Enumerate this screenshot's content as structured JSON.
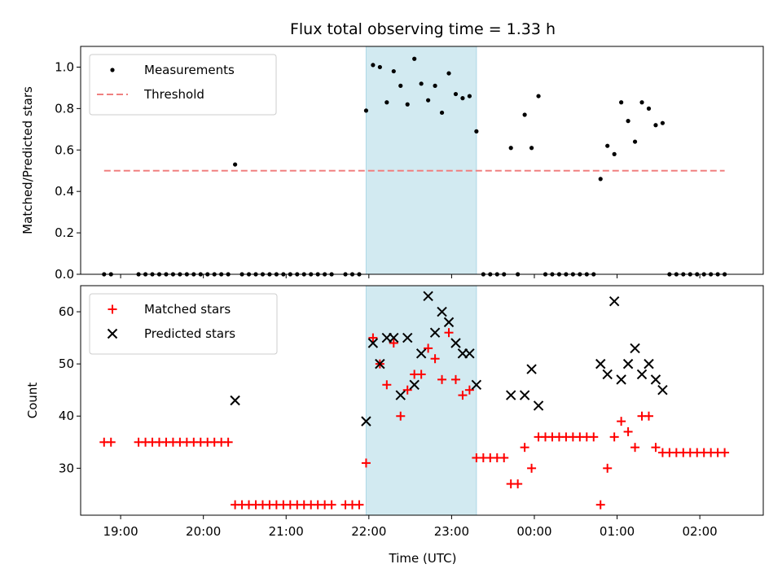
{
  "title": "Flux total observing time = 1.33 h",
  "xlabel": "Time (UTC)",
  "colors": {
    "measurement": "#000000",
    "threshold": "#f08080",
    "matched": "#ff0000",
    "predicted": "#000000",
    "highlight": "#add8e6"
  },
  "chart_data": [
    {
      "type": "scatter",
      "ylabel": "Matched/Predicted stars",
      "ylim": [
        0,
        1.1
      ],
      "yticks": [
        "0.0",
        "0.2",
        "0.4",
        "0.6",
        "0.8",
        "1.0"
      ],
      "xticks": [
        "19:00",
        "20:00",
        "21:00",
        "22:00",
        "23:00",
        "00:00",
        "01:00",
        "02:00"
      ],
      "xlim": [
        "18:31",
        "02:46"
      ],
      "legend_position": "upper left",
      "highlight_span": [
        "21:58",
        "23:18"
      ],
      "threshold": {
        "name": "Threshold",
        "value": 0.5,
        "x": [
          "18:48",
          "02:18"
        ]
      },
      "series": [
        {
          "name": "Measurements",
          "points": [
            [
              "18:48",
              0
            ],
            [
              "18:53",
              0
            ],
            [
              "19:13",
              0
            ],
            [
              "19:18",
              0
            ],
            [
              "19:23",
              0
            ],
            [
              "19:28",
              0
            ],
            [
              "19:33",
              0
            ],
            [
              "19:38",
              0
            ],
            [
              "19:43",
              0
            ],
            [
              "19:48",
              0
            ],
            [
              "19:53",
              0
            ],
            [
              "19:58",
              0
            ],
            [
              "20:03",
              0
            ],
            [
              "20:08",
              0
            ],
            [
              "20:13",
              0
            ],
            [
              "20:18",
              0
            ],
            [
              "20:23",
              0.53
            ],
            [
              "20:28",
              0
            ],
            [
              "20:33",
              0
            ],
            [
              "20:38",
              0
            ],
            [
              "20:43",
              0
            ],
            [
              "20:48",
              0
            ],
            [
              "20:53",
              0
            ],
            [
              "20:58",
              0
            ],
            [
              "21:03",
              0
            ],
            [
              "21:08",
              0
            ],
            [
              "21:13",
              0
            ],
            [
              "21:18",
              0
            ],
            [
              "21:23",
              0
            ],
            [
              "21:28",
              0
            ],
            [
              "21:33",
              0
            ],
            [
              "21:43",
              0
            ],
            [
              "21:48",
              0
            ],
            [
              "21:53",
              0
            ],
            [
              "21:58",
              0.79
            ],
            [
              "22:03",
              1.01
            ],
            [
              "22:08",
              1.0
            ],
            [
              "22:13",
              0.83
            ],
            [
              "22:18",
              0.98
            ],
            [
              "22:23",
              0.91
            ],
            [
              "22:28",
              0.82
            ],
            [
              "22:33",
              1.04
            ],
            [
              "22:38",
              0.92
            ],
            [
              "22:43",
              0.84
            ],
            [
              "22:48",
              0.91
            ],
            [
              "22:53",
              0.78
            ],
            [
              "22:58",
              0.97
            ],
            [
              "23:03",
              0.87
            ],
            [
              "23:08",
              0.85
            ],
            [
              "23:13",
              0.86
            ],
            [
              "23:18",
              0.69
            ],
            [
              "23:23",
              0
            ],
            [
              "23:28",
              0
            ],
            [
              "23:33",
              0
            ],
            [
              "23:38",
              0
            ],
            [
              "23:43",
              0.61
            ],
            [
              "23:48",
              0
            ],
            [
              "23:53",
              0.77
            ],
            [
              "23:58",
              0.61
            ],
            [
              "00:03",
              0.86
            ],
            [
              "00:08",
              0
            ],
            [
              "00:13",
              0
            ],
            [
              "00:18",
              0
            ],
            [
              "00:23",
              0
            ],
            [
              "00:28",
              0
            ],
            [
              "00:33",
              0
            ],
            [
              "00:38",
              0
            ],
            [
              "00:43",
              0
            ],
            [
              "00:48",
              0.46
            ],
            [
              "00:53",
              0.62
            ],
            [
              "00:58",
              0.58
            ],
            [
              "01:03",
              0.83
            ],
            [
              "01:08",
              0.74
            ],
            [
              "01:13",
              0.64
            ],
            [
              "01:18",
              0.83
            ],
            [
              "01:23",
              0.8
            ],
            [
              "01:28",
              0.72
            ],
            [
              "01:33",
              0.73
            ],
            [
              "01:38",
              0
            ],
            [
              "01:43",
              0
            ],
            [
              "01:48",
              0
            ],
            [
              "01:53",
              0
            ],
            [
              "01:58",
              0
            ],
            [
              "02:03",
              0
            ],
            [
              "02:08",
              0
            ],
            [
              "02:13",
              0
            ],
            [
              "02:18",
              0
            ]
          ]
        }
      ]
    },
    {
      "type": "scatter",
      "ylabel": "Count",
      "ylim": [
        21,
        65
      ],
      "yticks": [
        "30",
        "40",
        "50",
        "60"
      ],
      "xticks": [
        "19:00",
        "20:00",
        "21:00",
        "22:00",
        "23:00",
        "00:00",
        "01:00",
        "02:00"
      ],
      "xlim": [
        "18:31",
        "02:46"
      ],
      "legend_position": "upper left",
      "highlight_span": [
        "21:58",
        "23:18"
      ],
      "series": [
        {
          "name": "Matched stars",
          "marker": "plus",
          "points": [
            [
              "18:48",
              35
            ],
            [
              "18:53",
              35
            ],
            [
              "19:13",
              35
            ],
            [
              "19:18",
              35
            ],
            [
              "19:23",
              35
            ],
            [
              "19:28",
              35
            ],
            [
              "19:33",
              35
            ],
            [
              "19:38",
              35
            ],
            [
              "19:43",
              35
            ],
            [
              "19:48",
              35
            ],
            [
              "19:53",
              35
            ],
            [
              "19:58",
              35
            ],
            [
              "20:03",
              35
            ],
            [
              "20:08",
              35
            ],
            [
              "20:13",
              35
            ],
            [
              "20:18",
              35
            ],
            [
              "20:23",
              23
            ],
            [
              "20:28",
              23
            ],
            [
              "20:33",
              23
            ],
            [
              "20:38",
              23
            ],
            [
              "20:43",
              23
            ],
            [
              "20:48",
              23
            ],
            [
              "20:53",
              23
            ],
            [
              "20:58",
              23
            ],
            [
              "21:03",
              23
            ],
            [
              "21:08",
              23
            ],
            [
              "21:13",
              23
            ],
            [
              "21:18",
              23
            ],
            [
              "21:23",
              23
            ],
            [
              "21:28",
              23
            ],
            [
              "21:33",
              23
            ],
            [
              "21:43",
              23
            ],
            [
              "21:48",
              23
            ],
            [
              "21:53",
              23
            ],
            [
              "21:58",
              31
            ],
            [
              "22:03",
              55
            ],
            [
              "22:08",
              50
            ],
            [
              "22:13",
              46
            ],
            [
              "22:18",
              54
            ],
            [
              "22:23",
              40
            ],
            [
              "22:28",
              45
            ],
            [
              "22:33",
              48
            ],
            [
              "22:38",
              48
            ],
            [
              "22:43",
              53
            ],
            [
              "22:48",
              51
            ],
            [
              "22:53",
              47
            ],
            [
              "22:58",
              56
            ],
            [
              "23:03",
              47
            ],
            [
              "23:08",
              44
            ],
            [
              "23:13",
              45
            ],
            [
              "23:18",
              32
            ],
            [
              "23:23",
              32
            ],
            [
              "23:28",
              32
            ],
            [
              "23:33",
              32
            ],
            [
              "23:38",
              32
            ],
            [
              "23:43",
              27
            ],
            [
              "23:48",
              27
            ],
            [
              "23:53",
              34
            ],
            [
              "23:58",
              30
            ],
            [
              "00:03",
              36
            ],
            [
              "00:08",
              36
            ],
            [
              "00:13",
              36
            ],
            [
              "00:18",
              36
            ],
            [
              "00:23",
              36
            ],
            [
              "00:28",
              36
            ],
            [
              "00:33",
              36
            ],
            [
              "00:38",
              36
            ],
            [
              "00:43",
              36
            ],
            [
              "00:48",
              23
            ],
            [
              "00:53",
              30
            ],
            [
              "00:58",
              36
            ],
            [
              "01:03",
              39
            ],
            [
              "01:08",
              37
            ],
            [
              "01:13",
              34
            ],
            [
              "01:18",
              40
            ],
            [
              "01:23",
              40
            ],
            [
              "01:28",
              34
            ],
            [
              "01:33",
              33
            ],
            [
              "01:38",
              33
            ],
            [
              "01:43",
              33
            ],
            [
              "01:48",
              33
            ],
            [
              "01:53",
              33
            ],
            [
              "01:58",
              33
            ],
            [
              "02:03",
              33
            ],
            [
              "02:08",
              33
            ],
            [
              "02:13",
              33
            ],
            [
              "02:18",
              33
            ]
          ]
        },
        {
          "name": "Predicted stars",
          "marker": "x",
          "points": [
            [
              "20:23",
              43
            ],
            [
              "21:58",
              39
            ],
            [
              "22:03",
              54
            ],
            [
              "22:08",
              50
            ],
            [
              "22:13",
              55
            ],
            [
              "22:18",
              55
            ],
            [
              "22:23",
              44
            ],
            [
              "22:28",
              55
            ],
            [
              "22:33",
              46
            ],
            [
              "22:38",
              52
            ],
            [
              "22:43",
              63
            ],
            [
              "22:48",
              56
            ],
            [
              "22:53",
              60
            ],
            [
              "22:58",
              58
            ],
            [
              "23:03",
              54
            ],
            [
              "23:08",
              52
            ],
            [
              "23:13",
              52
            ],
            [
              "23:18",
              46
            ],
            [
              "23:43",
              44
            ],
            [
              "23:53",
              44
            ],
            [
              "23:58",
              49
            ],
            [
              "00:03",
              42
            ],
            [
              "00:48",
              50
            ],
            [
              "00:53",
              48
            ],
            [
              "00:58",
              62
            ],
            [
              "01:03",
              47
            ],
            [
              "01:08",
              50
            ],
            [
              "01:13",
              53
            ],
            [
              "01:18",
              48
            ],
            [
              "01:23",
              50
            ],
            [
              "01:28",
              47
            ],
            [
              "01:33",
              45
            ]
          ]
        }
      ]
    }
  ]
}
